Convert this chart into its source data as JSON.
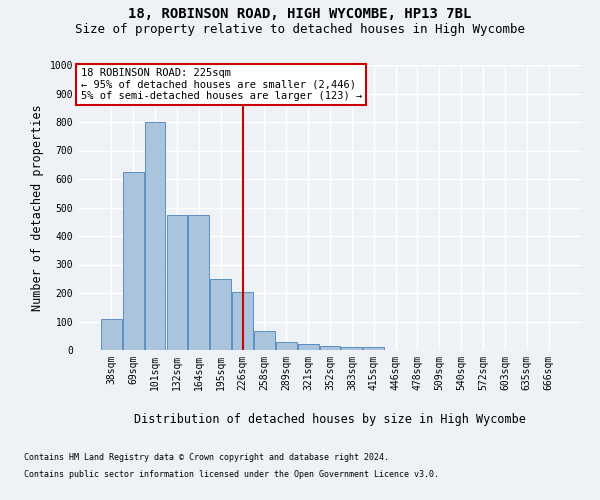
{
  "title1": "18, ROBINSON ROAD, HIGH WYCOMBE, HP13 7BL",
  "title2": "Size of property relative to detached houses in High Wycombe",
  "xlabel": "Distribution of detached houses by size in High Wycombe",
  "ylabel": "Number of detached properties",
  "categories": [
    "38sqm",
    "69sqm",
    "101sqm",
    "132sqm",
    "164sqm",
    "195sqm",
    "226sqm",
    "258sqm",
    "289sqm",
    "321sqm",
    "352sqm",
    "383sqm",
    "415sqm",
    "446sqm",
    "478sqm",
    "509sqm",
    "540sqm",
    "572sqm",
    "603sqm",
    "635sqm",
    "666sqm"
  ],
  "values": [
    110,
    625,
    800,
    475,
    475,
    250,
    205,
    65,
    28,
    20,
    15,
    10,
    10,
    0,
    0,
    0,
    0,
    0,
    0,
    0,
    0
  ],
  "bar_color": "#aac4dd",
  "bar_edge_color": "#5a8fc0",
  "vline_x": 6,
  "annotation_title": "18 ROBINSON ROAD: 225sqm",
  "annotation_line1": "← 95% of detached houses are smaller (2,446)",
  "annotation_line2": "5% of semi-detached houses are larger (123) →",
  "annotation_box_color": "#cc0000",
  "ylim": [
    0,
    1000
  ],
  "footnote1": "Contains HM Land Registry data © Crown copyright and database right 2024.",
  "footnote2": "Contains public sector information licensed under the Open Government Licence v3.0.",
  "bg_color": "#eef2f7",
  "grid_color": "#ffffff",
  "title1_fontsize": 10,
  "title2_fontsize": 9,
  "axis_label_fontsize": 8.5,
  "tick_fontsize": 7,
  "footnote_fontsize": 6
}
